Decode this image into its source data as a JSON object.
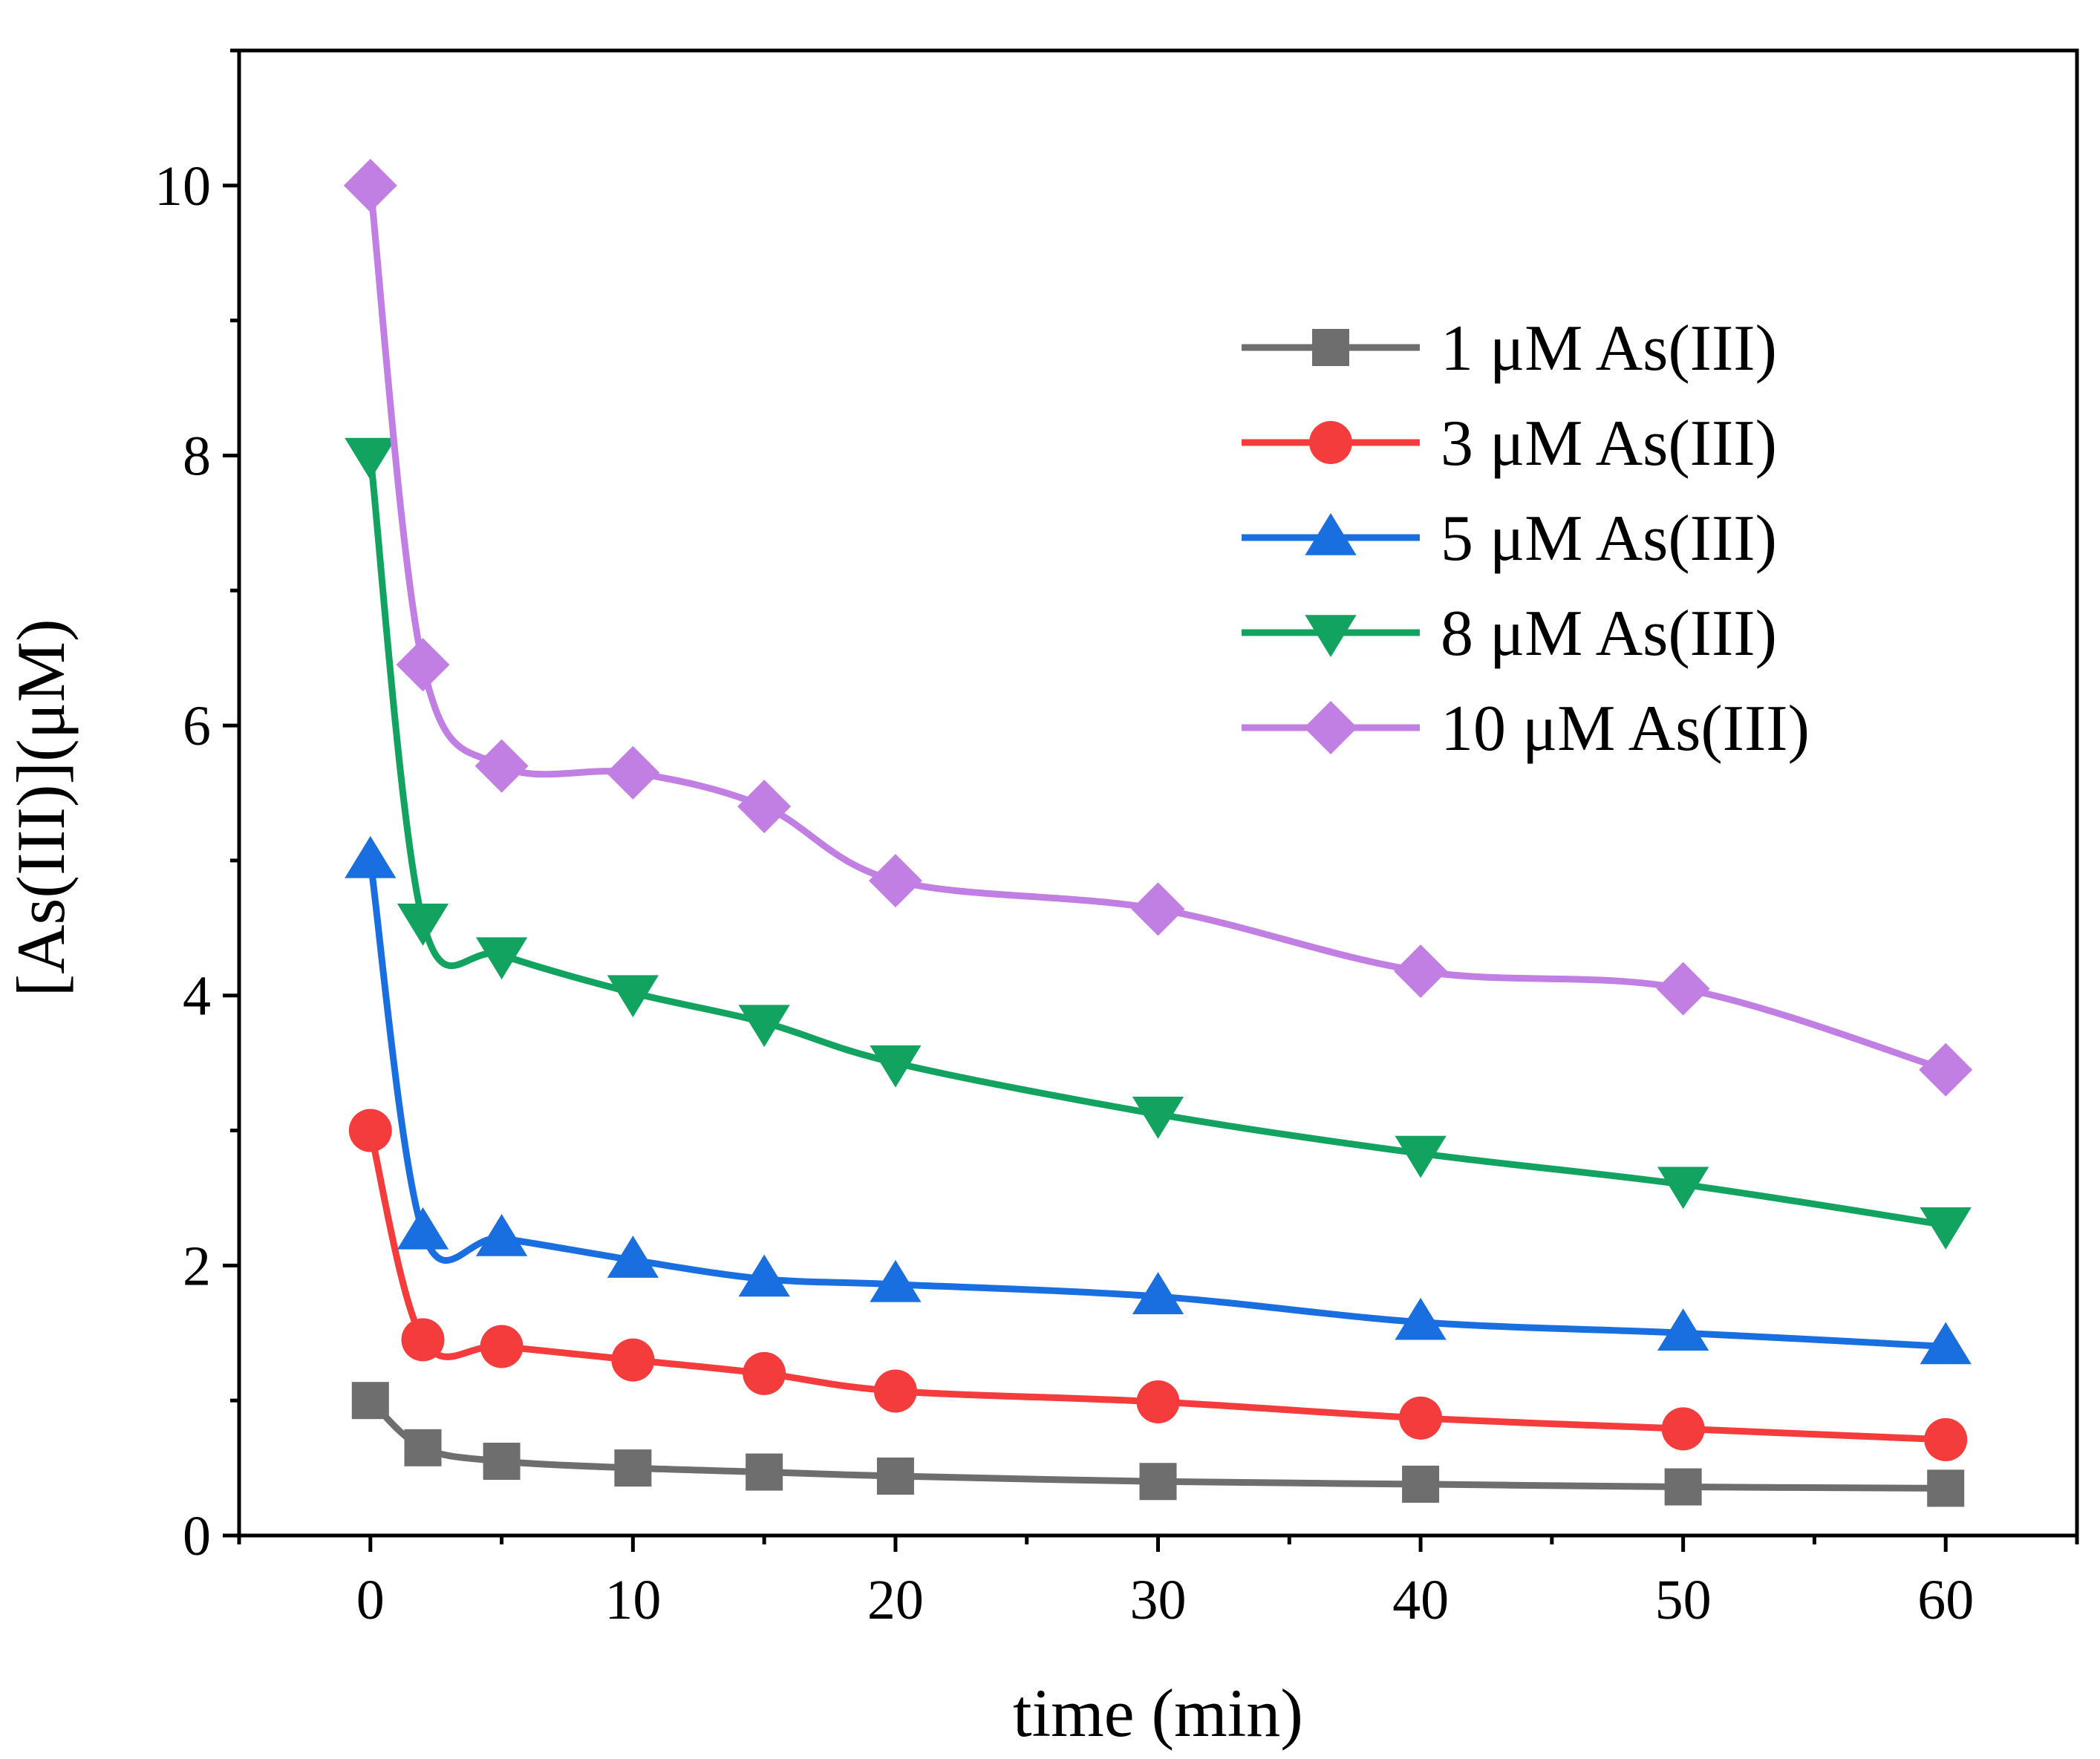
{
  "chart_data": {
    "type": "line",
    "xlabel": "time (min)",
    "ylabel": "[As(III)](μM)",
    "xlim": [
      -5,
      65
    ],
    "ylim": [
      0,
      11
    ],
    "xticks": [
      0,
      10,
      20,
      30,
      40,
      50,
      60
    ],
    "xtick_labels": [
      "0",
      "10",
      "20",
      "30",
      "40",
      "50",
      "60"
    ],
    "yticks": [
      0,
      2,
      4,
      6,
      8,
      10
    ],
    "ytick_labels": [
      "0",
      "2",
      "4",
      "6",
      "8",
      "10"
    ],
    "legend_position": "top-right",
    "x": [
      0,
      2,
      5,
      10,
      15,
      20,
      30,
      40,
      50,
      60
    ],
    "series": [
      {
        "name": "1 μM As(III)",
        "color": "#6e6e6e",
        "marker": "square",
        "values": [
          1.0,
          0.65,
          0.55,
          0.5,
          0.47,
          0.44,
          0.4,
          0.38,
          0.36,
          0.35
        ]
      },
      {
        "name": "3 μM As(III)",
        "color": "#f53c3c",
        "marker": "circle",
        "values": [
          3.0,
          1.45,
          1.4,
          1.3,
          1.2,
          1.07,
          0.99,
          0.87,
          0.79,
          0.71
        ]
      },
      {
        "name": "5 μM As(III)",
        "color": "#1a6fe0",
        "marker": "triangle-up",
        "values": [
          5.0,
          2.25,
          2.2,
          2.04,
          1.9,
          1.86,
          1.77,
          1.58,
          1.5,
          1.4
        ]
      },
      {
        "name": "8 μM As(III)",
        "color": "#13a361",
        "marker": "triangle-down",
        "values": [
          8.0,
          4.55,
          4.3,
          4.02,
          3.8,
          3.5,
          3.12,
          2.83,
          2.6,
          2.3
        ]
      },
      {
        "name": "10 μM As(III)",
        "color": "#c17ee3",
        "marker": "diamond",
        "values": [
          10.0,
          6.45,
          5.7,
          5.65,
          5.4,
          4.85,
          4.64,
          4.18,
          4.05,
          3.45
        ]
      }
    ]
  }
}
